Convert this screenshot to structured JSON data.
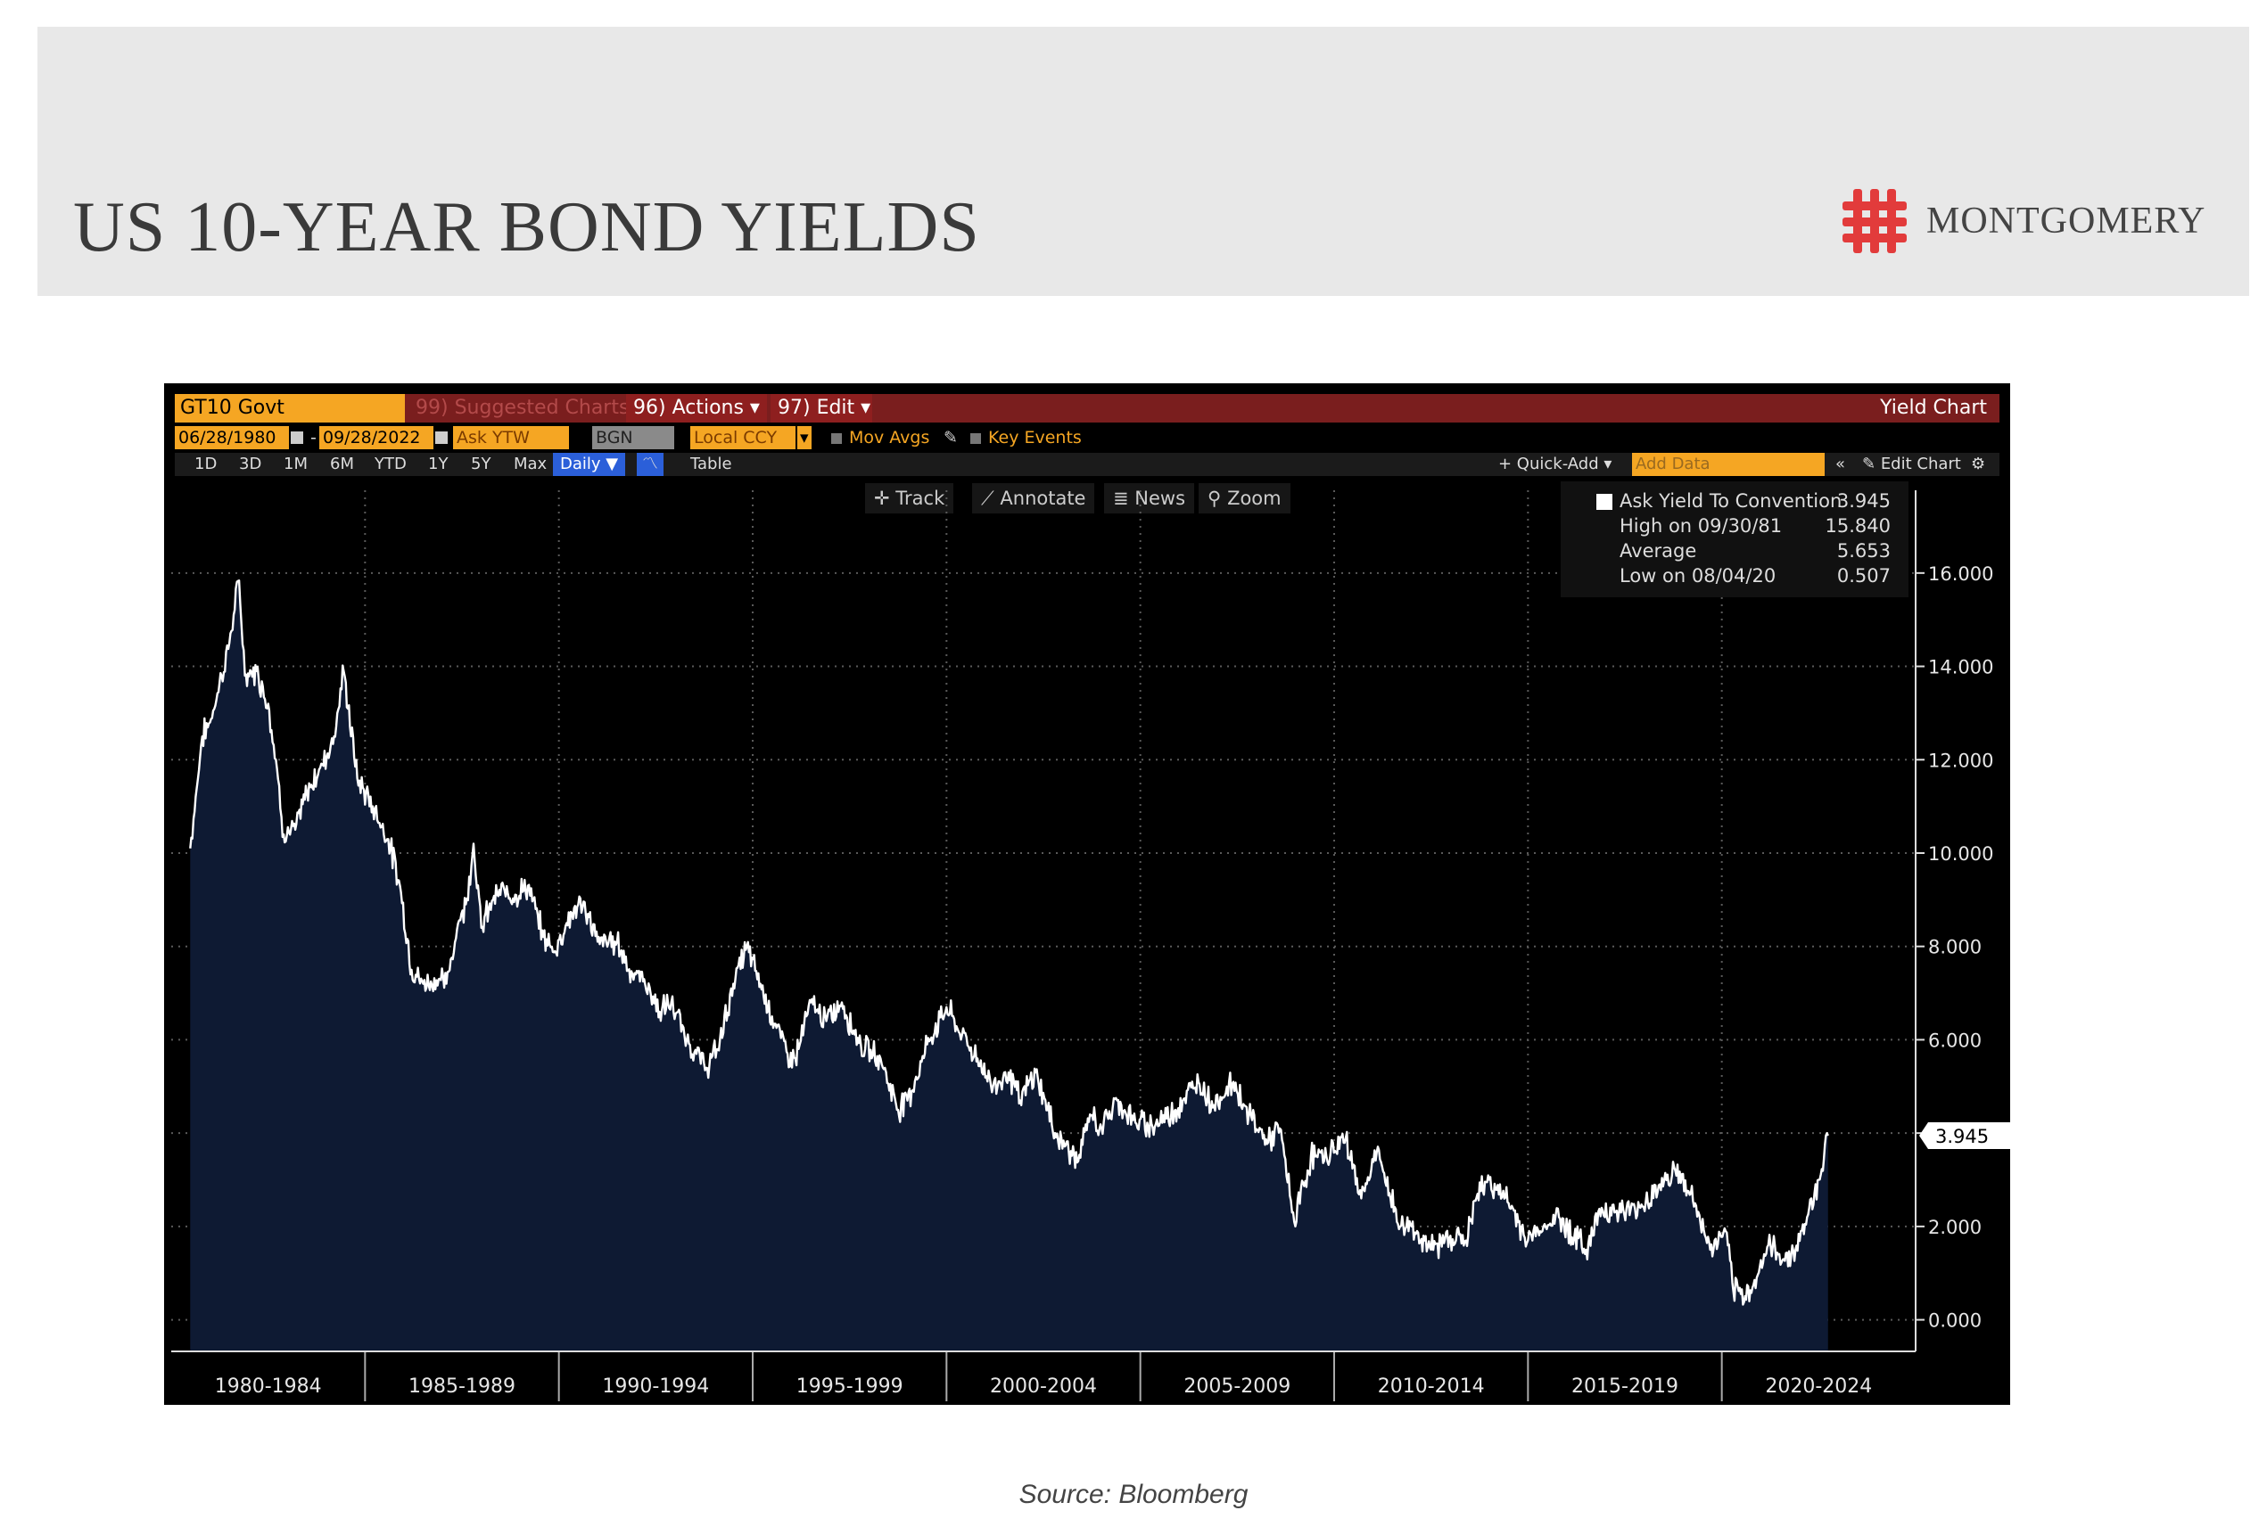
{
  "header": {
    "title": "US 10-YEAR BOND YIELDS",
    "brand": "MONTGOMERY"
  },
  "terminal": {
    "ticker": "GT10 Govt",
    "suggested": "99) Suggested Charts",
    "actions": "96) Actions ▾",
    "edit": "97) Edit ▾",
    "chart_title": "Yield Chart",
    "start_date": "06/28/1980",
    "end_date": "09/28/2022",
    "field": "Ask YTW",
    "source": "BGN",
    "currency": "Local CCY",
    "mov_avgs": "Mov Avgs",
    "key_events": "Key Events",
    "periods": [
      "1D",
      "3D",
      "1M",
      "6M",
      "YTD",
      "1Y",
      "5Y",
      "Max"
    ],
    "frequency": "Daily ▼",
    "table": "Table",
    "quick_add": "+ Quick-Add ▾",
    "add_data": "Add Data",
    "edit_chart": "Edit Chart",
    "tools": {
      "track": "Track",
      "annotate": "Annotate",
      "news": "News",
      "zoom": "Zoom"
    },
    "accent": "#f5a623",
    "bar_red": "#7a1e1e"
  },
  "legend": {
    "series_label": "Ask Yield To Convention",
    "series_value": "3.945",
    "high_label": "High on 09/30/81",
    "high_value": "15.840",
    "avg_label": "Average",
    "avg_value": "5.653",
    "low_label": "Low on 08/04/20",
    "low_value": "0.507"
  },
  "chart_data": {
    "type": "area",
    "series": [
      {
        "name": "Ask Yield To Convention",
        "x": [
          1980.49,
          1980.8,
          1981.0,
          1981.3,
          1981.5,
          1981.75,
          1981.9,
          1982.2,
          1982.5,
          1982.7,
          1982.9,
          1983.2,
          1983.5,
          1983.9,
          1984.2,
          1984.45,
          1984.8,
          1985.2,
          1985.6,
          1985.9,
          1986.2,
          1986.5,
          1986.9,
          1987.1,
          1987.4,
          1987.6,
          1987.8,
          1988.0,
          1988.3,
          1988.6,
          1988.9,
          1989.2,
          1989.6,
          1989.9,
          1990.2,
          1990.5,
          1990.75,
          1991.0,
          1991.5,
          1991.9,
          1992.2,
          1992.6,
          1992.9,
          1993.3,
          1993.8,
          1994.1,
          1994.5,
          1994.85,
          1995.2,
          1995.5,
          1995.9,
          1996.1,
          1996.5,
          1996.9,
          1997.3,
          1997.6,
          1997.9,
          1998.3,
          1998.75,
          1999.1,
          1999.5,
          2000.0,
          2000.4,
          2000.8,
          2001.2,
          2001.6,
          2001.9,
          2002.3,
          2002.8,
          2003.4,
          2003.7,
          2004.0,
          2004.4,
          2004.9,
          2005.4,
          2005.9,
          2006.5,
          2006.9,
          2007.4,
          2007.8,
          2008.3,
          2008.6,
          2008.97,
          2009.4,
          2009.8,
          2010.3,
          2010.7,
          2011.1,
          2011.7,
          2012.0,
          2012.5,
          2013.0,
          2013.4,
          2013.7,
          2014.0,
          2014.5,
          2015.0,
          2015.4,
          2015.8,
          2016.5,
          2016.9,
          2017.4,
          2017.9,
          2018.4,
          2018.8,
          2019.2,
          2019.7,
          2020.1,
          2020.3,
          2020.6,
          2020.9,
          2021.2,
          2021.6,
          2021.9,
          2022.2,
          2022.5,
          2022.74
        ],
        "values": [
          10.1,
          12.5,
          12.8,
          13.8,
          14.5,
          15.84,
          13.8,
          13.9,
          13.2,
          12.0,
          10.4,
          10.5,
          11.3,
          11.9,
          12.5,
          13.9,
          11.6,
          11.0,
          10.3,
          9.3,
          7.5,
          7.2,
          7.3,
          7.2,
          8.5,
          8.9,
          10.2,
          8.4,
          9.0,
          9.2,
          9.1,
          9.3,
          8.2,
          7.9,
          8.5,
          8.9,
          8.7,
          8.1,
          8.1,
          7.4,
          7.3,
          6.6,
          6.8,
          6.0,
          5.4,
          5.8,
          7.2,
          8.0,
          7.2,
          6.5,
          5.7,
          5.6,
          6.8,
          6.4,
          6.8,
          6.2,
          5.8,
          5.6,
          4.5,
          4.9,
          5.9,
          6.7,
          6.1,
          5.6,
          5.0,
          5.3,
          4.7,
          5.3,
          4.0,
          3.4,
          4.4,
          4.1,
          4.7,
          4.2,
          4.2,
          4.5,
          5.1,
          4.6,
          5.1,
          4.4,
          3.8,
          4.1,
          2.1,
          3.5,
          3.5,
          3.9,
          2.6,
          3.6,
          2.0,
          2.0,
          1.5,
          1.8,
          1.7,
          2.7,
          3.0,
          2.5,
          1.7,
          2.0,
          2.2,
          1.5,
          2.4,
          2.3,
          2.4,
          2.9,
          3.2,
          2.7,
          1.5,
          1.9,
          0.6,
          0.507,
          0.9,
          1.6,
          1.3,
          1.5,
          2.2,
          3.0,
          3.945
        ]
      }
    ],
    "x_labels": [
      "1980-1984",
      "1985-1989",
      "1990-1994",
      "1995-1999",
      "2000-2004",
      "2005-2009",
      "2010-2014",
      "2015-2019",
      "2020-2024"
    ],
    "xlim": [
      1980.0,
      2025.0
    ],
    "ylim": [
      -0.6,
      17.2
    ],
    "y_ticks": [
      0,
      2,
      4,
      6,
      8,
      10,
      12,
      14,
      16
    ],
    "y_tick_labels": [
      "0.000",
      "2.000",
      "",
      "6.000",
      "8.000",
      "10.000",
      "12.000",
      "14.000",
      "16.000"
    ],
    "last_value_label": "3.945",
    "grid": true,
    "legend_position": "top-right",
    "line_color": "#ffffff",
    "fill_color": "#0e1a33"
  },
  "footer": {
    "source": "Source: Bloomberg"
  }
}
